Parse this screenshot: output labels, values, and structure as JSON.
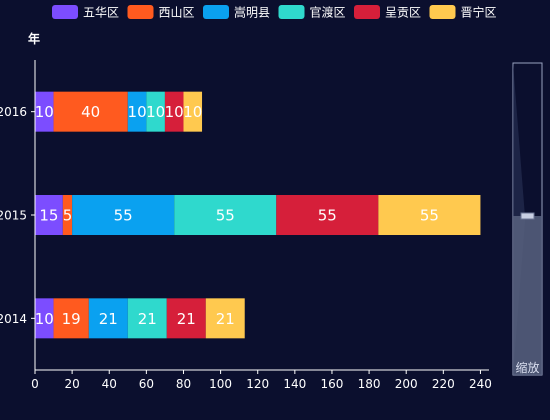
{
  "chart_data": {
    "type": "bar",
    "orientation": "horizontal",
    "stacked": true,
    "ylabel": "年",
    "categories": [
      "2016",
      "2015",
      "2014"
    ],
    "series": [
      {
        "name": "五华区",
        "color": "#7c4dff",
        "values": [
          10,
          15,
          10
        ]
      },
      {
        "name": "西山区",
        "color": "#ff5a1f",
        "values": [
          40,
          5,
          19
        ]
      },
      {
        "name": "嵩明县",
        "color": "#0aa1f0",
        "values": [
          10,
          55,
          21
        ]
      },
      {
        "name": "官渡区",
        "color": "#2fd9cd",
        "values": [
          10,
          55,
          21
        ]
      },
      {
        "name": "呈贡区",
        "color": "#d61f3a",
        "values": [
          10,
          55,
          21
        ]
      },
      {
        "name": "晋宁区",
        "color": "#ffc94f",
        "values": [
          10,
          55,
          21
        ]
      }
    ],
    "xlim": [
      0,
      250
    ],
    "xticks": [
      0,
      20,
      40,
      60,
      80,
      100,
      120,
      140,
      160,
      180,
      200,
      220,
      240
    ],
    "grid": false,
    "legend_position": "top-center",
    "data_labels": true,
    "datazoom": {
      "label": "缩放",
      "range": [
        0,
        100
      ]
    }
  },
  "theme": {
    "background": "#0b0f2e",
    "axis_color": "#ffffff",
    "text_color": "#ffffff",
    "zoom_fill": "#58617f",
    "zoom_border": "#9aa3c0"
  }
}
